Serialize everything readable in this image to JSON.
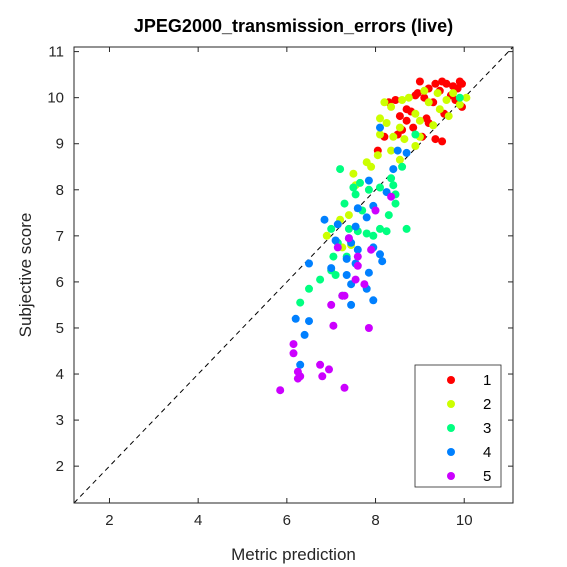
{
  "chart_data": {
    "type": "scatter",
    "title": "JPEG2000_transmission_errors (live)",
    "xlabel": "Metric prediction",
    "ylabel": "Subjective score",
    "xlim": [
      1.2,
      11.1
    ],
    "ylim": [
      1.2,
      11.1
    ],
    "xticks": [
      2,
      4,
      6,
      8,
      10
    ],
    "yticks": [
      2,
      3,
      4,
      5,
      6,
      7,
      8,
      9,
      10,
      11
    ],
    "grid": false,
    "box": true,
    "reference_line": {
      "style": "dashed",
      "color": "#000000",
      "from": [
        1.2,
        1.2
      ],
      "to": [
        11.1,
        11.1
      ]
    },
    "legend": {
      "location": "bottom-right",
      "boxed": true
    },
    "series": [
      {
        "name": "1",
        "color": "#ff0000",
        "points": [
          [
            9.0,
            10.35
          ],
          [
            9.2,
            10.2
          ],
          [
            9.35,
            10.3
          ],
          [
            9.5,
            10.35
          ],
          [
            9.6,
            10.3
          ],
          [
            9.75,
            10.25
          ],
          [
            9.9,
            10.35
          ],
          [
            9.95,
            10.3
          ],
          [
            8.95,
            10.1
          ],
          [
            9.1,
            10.0
          ],
          [
            9.45,
            10.15
          ],
          [
            9.7,
            10.05
          ],
          [
            9.85,
            10.2
          ],
          [
            8.3,
            9.9
          ],
          [
            8.45,
            9.95
          ],
          [
            8.7,
            9.75
          ],
          [
            8.9,
            10.05
          ],
          [
            9.3,
            9.9
          ],
          [
            9.8,
            9.95
          ],
          [
            8.55,
            9.6
          ],
          [
            8.8,
            9.7
          ],
          [
            9.15,
            9.55
          ],
          [
            9.55,
            9.65
          ],
          [
            8.6,
            9.3
          ],
          [
            8.7,
            9.5
          ],
          [
            8.85,
            9.35
          ],
          [
            9.05,
            9.15
          ],
          [
            9.2,
            9.45
          ],
          [
            9.35,
            9.1
          ],
          [
            9.5,
            9.05
          ],
          [
            9.95,
            9.8
          ],
          [
            8.05,
            8.85
          ],
          [
            8.5,
            9.2
          ],
          [
            8.2,
            9.15
          ]
        ]
      },
      {
        "name": "2",
        "color": "#ccff00",
        "points": [
          [
            9.1,
            10.15
          ],
          [
            9.4,
            10.1
          ],
          [
            9.6,
            9.95
          ],
          [
            9.75,
            10.1
          ],
          [
            10.05,
            10.0
          ],
          [
            9.9,
            9.85
          ],
          [
            8.2,
            9.9
          ],
          [
            8.35,
            9.8
          ],
          [
            8.6,
            9.95
          ],
          [
            8.75,
            10.0
          ],
          [
            9.2,
            9.9
          ],
          [
            9.45,
            9.75
          ],
          [
            9.65,
            9.6
          ],
          [
            8.1,
            9.55
          ],
          [
            8.25,
            9.45
          ],
          [
            8.55,
            9.35
          ],
          [
            8.9,
            9.65
          ],
          [
            9.0,
            9.5
          ],
          [
            9.3,
            9.4
          ],
          [
            8.1,
            9.2
          ],
          [
            8.4,
            9.15
          ],
          [
            8.65,
            9.1
          ],
          [
            8.9,
            8.95
          ],
          [
            9.0,
            9.15
          ],
          [
            7.8,
            8.6
          ],
          [
            8.05,
            8.75
          ],
          [
            8.35,
            8.85
          ],
          [
            8.55,
            8.65
          ],
          [
            7.55,
            8.1
          ],
          [
            7.5,
            8.35
          ],
          [
            7.9,
            8.5
          ],
          [
            7.2,
            7.35
          ],
          [
            7.4,
            7.45
          ],
          [
            6.9,
            7.0
          ],
          [
            7.25,
            6.75
          ],
          [
            7.45,
            6.8
          ]
        ]
      },
      {
        "name": "3",
        "color": "#00ff80",
        "points": [
          [
            9.9,
            10.0
          ],
          [
            8.9,
            9.2
          ],
          [
            8.6,
            8.5
          ],
          [
            8.4,
            8.1
          ],
          [
            7.2,
            8.45
          ],
          [
            7.5,
            8.05
          ],
          [
            7.65,
            8.15
          ],
          [
            7.85,
            8.0
          ],
          [
            8.1,
            8.05
          ],
          [
            8.45,
            7.9
          ],
          [
            8.35,
            8.25
          ],
          [
            7.55,
            7.9
          ],
          [
            7.7,
            7.55
          ],
          [
            7.3,
            7.7
          ],
          [
            8.45,
            7.7
          ],
          [
            8.3,
            7.45
          ],
          [
            7.4,
            7.15
          ],
          [
            7.6,
            7.1
          ],
          [
            7.8,
            7.05
          ],
          [
            7.95,
            7.0
          ],
          [
            8.1,
            7.15
          ],
          [
            8.25,
            7.1
          ],
          [
            8.7,
            7.15
          ],
          [
            7.0,
            7.15
          ],
          [
            7.15,
            6.85
          ],
          [
            7.05,
            6.55
          ],
          [
            7.35,
            6.55
          ],
          [
            7.0,
            6.25
          ],
          [
            7.1,
            6.15
          ],
          [
            6.75,
            6.05
          ],
          [
            6.5,
            5.85
          ],
          [
            7.25,
            5.7
          ],
          [
            6.3,
            5.55
          ]
        ]
      },
      {
        "name": "4",
        "color": "#0080ff",
        "points": [
          [
            8.1,
            9.35
          ],
          [
            8.5,
            8.85
          ],
          [
            8.7,
            8.8
          ],
          [
            8.4,
            8.45
          ],
          [
            7.85,
            8.2
          ],
          [
            8.25,
            7.95
          ],
          [
            7.6,
            7.6
          ],
          [
            7.95,
            7.65
          ],
          [
            7.8,
            7.4
          ],
          [
            6.85,
            7.35
          ],
          [
            7.15,
            7.25
          ],
          [
            7.55,
            7.2
          ],
          [
            7.4,
            6.95
          ],
          [
            7.1,
            6.9
          ],
          [
            7.45,
            6.85
          ],
          [
            7.6,
            6.7
          ],
          [
            7.95,
            6.75
          ],
          [
            8.1,
            6.6
          ],
          [
            8.15,
            6.45
          ],
          [
            7.35,
            6.5
          ],
          [
            7.55,
            6.4
          ],
          [
            7.85,
            6.2
          ],
          [
            7.35,
            6.15
          ],
          [
            7.0,
            6.3
          ],
          [
            6.5,
            6.4
          ],
          [
            7.45,
            5.95
          ],
          [
            7.8,
            5.85
          ],
          [
            7.95,
            5.6
          ],
          [
            7.45,
            5.5
          ],
          [
            6.2,
            5.2
          ],
          [
            6.5,
            5.15
          ],
          [
            6.4,
            4.85
          ],
          [
            6.3,
            4.2
          ]
        ]
      },
      {
        "name": "5",
        "color": "#cc00ff",
        "points": [
          [
            8.35,
            7.85
          ],
          [
            8.0,
            7.55
          ],
          [
            7.4,
            6.95
          ],
          [
            7.15,
            6.75
          ],
          [
            7.6,
            6.55
          ],
          [
            7.9,
            6.7
          ],
          [
            7.6,
            6.35
          ],
          [
            7.55,
            6.05
          ],
          [
            7.75,
            5.95
          ],
          [
            7.25,
            5.7
          ],
          [
            7.3,
            5.7
          ],
          [
            7.0,
            5.5
          ],
          [
            7.85,
            5.0
          ],
          [
            7.05,
            5.05
          ],
          [
            6.95,
            4.1
          ],
          [
            6.75,
            4.2
          ],
          [
            6.15,
            4.65
          ],
          [
            6.15,
            4.45
          ],
          [
            6.25,
            4.05
          ],
          [
            6.3,
            3.95
          ],
          [
            6.25,
            3.9
          ],
          [
            6.8,
            3.95
          ],
          [
            7.3,
            3.7
          ],
          [
            5.85,
            3.65
          ]
        ]
      }
    ]
  }
}
